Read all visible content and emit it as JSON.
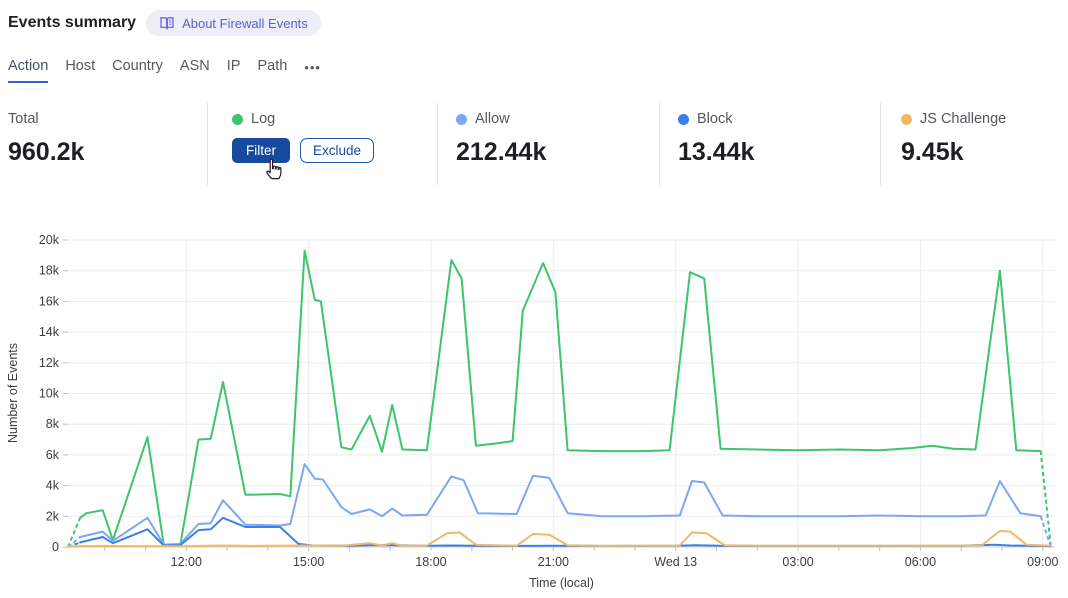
{
  "header": {
    "title": "Events summary",
    "about_label": "About Firewall Events"
  },
  "tabs": {
    "items": [
      {
        "label": "Action",
        "active": true
      },
      {
        "label": "Host",
        "active": false
      },
      {
        "label": "Country",
        "active": false
      },
      {
        "label": "ASN",
        "active": false
      },
      {
        "label": "IP",
        "active": false
      },
      {
        "label": "Path",
        "active": false
      }
    ],
    "overflow_label": "•••"
  },
  "stats": [
    {
      "label": "Total",
      "value": "960.2k"
    },
    {
      "label": "Log",
      "color": "#3ec46d",
      "filter_label": "Filter",
      "exclude_label": "Exclude"
    },
    {
      "label": "Allow",
      "color": "#7aa9f2",
      "value": "212.44k"
    },
    {
      "label": "Block",
      "color": "#3d7fe8",
      "value": "13.44k"
    },
    {
      "label": "JS Challenge",
      "color": "#f2b862",
      "value": "9.45k"
    }
  ],
  "chart_data": {
    "type": "line",
    "xlabel": "Time (local)",
    "ylabel": "Number of Events",
    "xlim": [
      9.1,
      33.3
    ],
    "ylim": [
      0,
      20000
    ],
    "grid": true,
    "legend_position": "stats-row-above-chart",
    "x_ticks": [
      {
        "h": 12,
        "label": "12:00"
      },
      {
        "h": 15,
        "label": "15:00"
      },
      {
        "h": 18,
        "label": "18:00"
      },
      {
        "h": 21,
        "label": "21:00"
      },
      {
        "h": 24,
        "label": "Wed 13"
      },
      {
        "h": 27,
        "label": "03:00"
      },
      {
        "h": 30,
        "label": "06:00"
      },
      {
        "h": 33,
        "label": "09:00"
      }
    ],
    "x_minor_tick_hours": [
      10,
      11,
      12,
      13,
      14,
      15,
      16,
      17,
      18,
      19,
      20,
      21,
      22,
      23,
      24,
      25,
      26,
      27,
      28,
      29,
      30,
      31,
      32,
      33
    ],
    "y_ticks": [
      {
        "v": 0,
        "label": "0"
      },
      {
        "v": 2000,
        "label": "2k"
      },
      {
        "v": 4000,
        "label": "4k"
      },
      {
        "v": 6000,
        "label": "6k"
      },
      {
        "v": 8000,
        "label": "8k"
      },
      {
        "v": 10000,
        "label": "10k"
      },
      {
        "v": 12000,
        "label": "12k"
      },
      {
        "v": 14000,
        "label": "14k"
      },
      {
        "v": 16000,
        "label": "16k"
      },
      {
        "v": 18000,
        "label": "18k"
      },
      {
        "v": 20000,
        "label": "20k"
      }
    ],
    "x_unit_note": "hours, 24 = midnight Wed 13",
    "series": [
      {
        "name": "Log",
        "color": "#3ec46d",
        "dash_start": true,
        "dash_end": true,
        "points": [
          [
            9.1,
            0
          ],
          [
            9.4,
            1900
          ],
          [
            9.55,
            2200
          ],
          [
            9.95,
            2400
          ],
          [
            10.2,
            450
          ],
          [
            11.05,
            7150
          ],
          [
            11.45,
            120
          ],
          [
            11.85,
            100
          ],
          [
            12.3,
            7000
          ],
          [
            12.6,
            7050
          ],
          [
            12.9,
            10750
          ],
          [
            13.45,
            3400
          ],
          [
            14.3,
            3450
          ],
          [
            14.55,
            3300
          ],
          [
            14.9,
            19300
          ],
          [
            15.15,
            16100
          ],
          [
            15.3,
            16000
          ],
          [
            15.8,
            6500
          ],
          [
            16.05,
            6350
          ],
          [
            16.5,
            8550
          ],
          [
            16.8,
            6200
          ],
          [
            17.05,
            9250
          ],
          [
            17.3,
            6350
          ],
          [
            17.9,
            6300
          ],
          [
            18.5,
            18700
          ],
          [
            18.75,
            17500
          ],
          [
            19.1,
            6600
          ],
          [
            19.6,
            6750
          ],
          [
            20.0,
            6900
          ],
          [
            20.25,
            15400
          ],
          [
            20.75,
            18500
          ],
          [
            21.05,
            16600
          ],
          [
            21.35,
            6300
          ],
          [
            22.2,
            6250
          ],
          [
            23.2,
            6250
          ],
          [
            23.85,
            6300
          ],
          [
            24.35,
            17900
          ],
          [
            24.7,
            17500
          ],
          [
            25.1,
            6400
          ],
          [
            26,
            6350
          ],
          [
            27,
            6300
          ],
          [
            28,
            6350
          ],
          [
            29,
            6300
          ],
          [
            29.8,
            6450
          ],
          [
            30.3,
            6600
          ],
          [
            30.8,
            6400
          ],
          [
            31.35,
            6350
          ],
          [
            31.95,
            18000
          ],
          [
            32.35,
            6300
          ],
          [
            32.95,
            6250
          ],
          [
            33.2,
            0
          ]
        ]
      },
      {
        "name": "Allow",
        "color": "#7aa9f2",
        "dash_start": true,
        "dash_end": true,
        "points": [
          [
            9.1,
            0
          ],
          [
            9.4,
            650
          ],
          [
            9.55,
            750
          ],
          [
            9.95,
            1000
          ],
          [
            10.2,
            400
          ],
          [
            11.05,
            1900
          ],
          [
            11.45,
            150
          ],
          [
            11.85,
            200
          ],
          [
            12.3,
            1500
          ],
          [
            12.6,
            1550
          ],
          [
            12.9,
            3050
          ],
          [
            13.45,
            1450
          ],
          [
            14.3,
            1400
          ],
          [
            14.55,
            1500
          ],
          [
            14.9,
            5400
          ],
          [
            15.15,
            4450
          ],
          [
            15.35,
            4400
          ],
          [
            15.8,
            2600
          ],
          [
            16.05,
            2150
          ],
          [
            16.5,
            2450
          ],
          [
            16.8,
            2000
          ],
          [
            17.05,
            2500
          ],
          [
            17.3,
            2050
          ],
          [
            17.9,
            2100
          ],
          [
            18.5,
            4600
          ],
          [
            18.8,
            4350
          ],
          [
            19.15,
            2200
          ],
          [
            20.1,
            2150
          ],
          [
            20.5,
            4650
          ],
          [
            20.9,
            4500
          ],
          [
            21.35,
            2200
          ],
          [
            22.2,
            2000
          ],
          [
            23.2,
            2000
          ],
          [
            24.1,
            2050
          ],
          [
            24.4,
            4300
          ],
          [
            24.7,
            4200
          ],
          [
            25.15,
            2050
          ],
          [
            26,
            2000
          ],
          [
            27,
            2000
          ],
          [
            28,
            2000
          ],
          [
            29,
            2050
          ],
          [
            30,
            2000
          ],
          [
            31,
            2000
          ],
          [
            31.6,
            2050
          ],
          [
            31.95,
            4300
          ],
          [
            32.45,
            2200
          ],
          [
            32.95,
            2000
          ],
          [
            33.2,
            0
          ]
        ]
      },
      {
        "name": "Block",
        "color": "#3d7fe8",
        "dash_start": true,
        "dash_end": false,
        "points": [
          [
            9.1,
            0
          ],
          [
            9.4,
            300
          ],
          [
            9.55,
            400
          ],
          [
            9.95,
            650
          ],
          [
            10.2,
            250
          ],
          [
            11.05,
            1150
          ],
          [
            11.45,
            100
          ],
          [
            11.85,
            120
          ],
          [
            12.3,
            1100
          ],
          [
            12.6,
            1150
          ],
          [
            12.9,
            1900
          ],
          [
            13.45,
            1300
          ],
          [
            14.3,
            1300
          ],
          [
            14.75,
            200
          ],
          [
            15.1,
            100
          ],
          [
            16,
            80
          ],
          [
            16.5,
            120
          ],
          [
            17.05,
            120
          ],
          [
            17.9,
            80
          ],
          [
            18.5,
            100
          ],
          [
            19.1,
            80
          ],
          [
            20,
            70
          ],
          [
            21,
            80
          ],
          [
            22.2,
            70
          ],
          [
            24,
            80
          ],
          [
            24.5,
            120
          ],
          [
            25.1,
            80
          ],
          [
            27,
            70
          ],
          [
            29,
            70
          ],
          [
            31,
            80
          ],
          [
            31.8,
            150
          ],
          [
            32.2,
            100
          ],
          [
            32.95,
            70
          ],
          [
            33.2,
            50
          ]
        ]
      },
      {
        "name": "JS Challenge",
        "color": "#f2b862",
        "dash_start": false,
        "dash_end": false,
        "points": [
          [
            9.1,
            50
          ],
          [
            10,
            70
          ],
          [
            11,
            50
          ],
          [
            12,
            60
          ],
          [
            12.9,
            100
          ],
          [
            13.5,
            70
          ],
          [
            14.9,
            100
          ],
          [
            15.8,
            80
          ],
          [
            16.5,
            250
          ],
          [
            16.8,
            100
          ],
          [
            17.05,
            250
          ],
          [
            17.3,
            80
          ],
          [
            17.9,
            100
          ],
          [
            18.4,
            900
          ],
          [
            18.7,
            950
          ],
          [
            19.1,
            150
          ],
          [
            20.1,
            80
          ],
          [
            20.5,
            850
          ],
          [
            20.9,
            800
          ],
          [
            21.35,
            120
          ],
          [
            22.2,
            70
          ],
          [
            24.1,
            100
          ],
          [
            24.4,
            950
          ],
          [
            24.75,
            900
          ],
          [
            25.2,
            120
          ],
          [
            26,
            80
          ],
          [
            28,
            80
          ],
          [
            30,
            80
          ],
          [
            31.5,
            100
          ],
          [
            31.95,
            1050
          ],
          [
            32.2,
            1000
          ],
          [
            32.6,
            150
          ],
          [
            33.2,
            80
          ]
        ]
      }
    ]
  }
}
